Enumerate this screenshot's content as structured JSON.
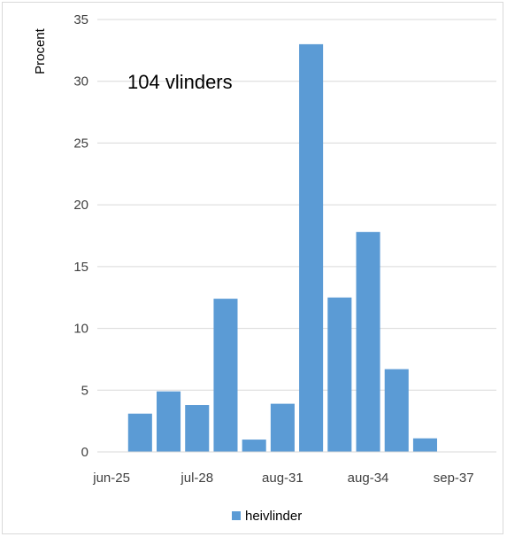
{
  "chart_data": {
    "type": "bar",
    "ylabel": "Procent",
    "xlabel": "",
    "annotation": "104 vlinders",
    "ylim": [
      0,
      35
    ],
    "yticks": [
      "0",
      "5",
      "10",
      "15",
      "20",
      "25",
      "30",
      "35"
    ],
    "x_tick_labels": [
      "jun-25",
      "jul-28",
      "aug-31",
      "aug-34",
      "sep-37"
    ],
    "grid": "horizontal",
    "legend_position": "bottom",
    "series": [
      {
        "name": "heivlinder",
        "color": "#5b9bd5",
        "values": [
          0,
          3.1,
          4.9,
          3.8,
          12.4,
          1.0,
          3.9,
          33.0,
          12.5,
          17.8,
          6.7,
          1.1,
          0,
          0
        ]
      }
    ]
  }
}
